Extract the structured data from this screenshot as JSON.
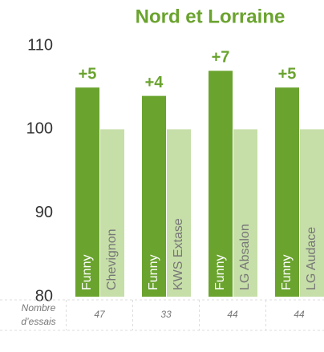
{
  "chart_data": {
    "type": "bar",
    "title": "Nord et Lorraine",
    "categories": [
      null,
      null,
      null,
      null
    ],
    "series": [
      {
        "name": "Funny",
        "color": "#6aa32e",
        "values": [
          105,
          104,
          107,
          105
        ],
        "annotations": [
          "+5",
          "+4",
          "+7",
          "+5"
        ]
      },
      {
        "color": "#c6dea8",
        "values": [
          100,
          100,
          100,
          100
        ],
        "labels": [
          "Chevignon",
          "KWS Extase",
          "LG Absalon",
          "LG Audace"
        ]
      }
    ],
    "ylim": [
      80,
      110
    ],
    "yticks": [
      80,
      90,
      100,
      110
    ],
    "grid": false,
    "trials": {
      "label": [
        "Nombre",
        "d’essais"
      ],
      "values": [
        47,
        33,
        44,
        44
      ]
    }
  }
}
